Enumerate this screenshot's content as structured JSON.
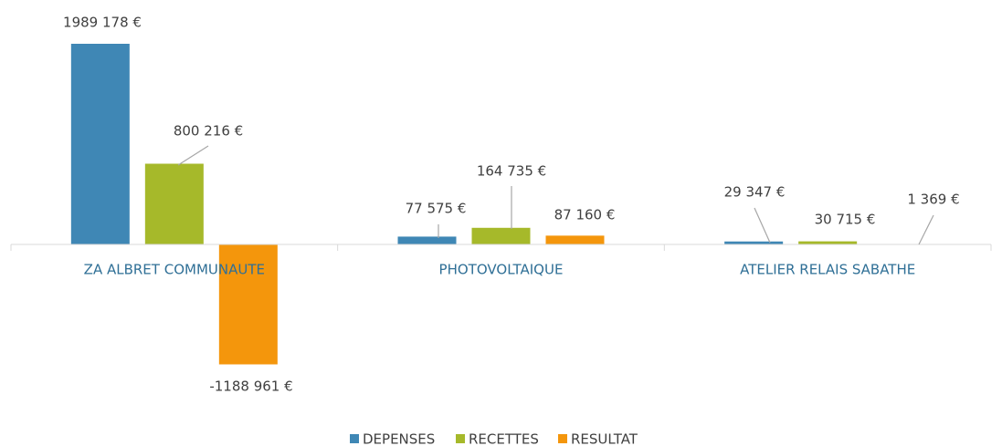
{
  "chart_data": {
    "type": "bar",
    "categories": [
      "ZA ALBRET COMMUNAUTE",
      "PHOTOVOLTAIQUE",
      "ATELIER RELAIS SABATHE"
    ],
    "series": [
      {
        "name": "DEPENSES",
        "color": "#3f87b5",
        "values": [
          1989178,
          77575,
          29347
        ],
        "value_labels": [
          "1989 178 €",
          "77 575 €",
          "29 347 €"
        ]
      },
      {
        "name": "RECETTES",
        "color": "#a6b92a",
        "values": [
          800216,
          164735,
          30715
        ],
        "value_labels": [
          "800 216 €",
          "164 735 €",
          "30 715 €"
        ]
      },
      {
        "name": "RESULTAT",
        "color": "#f4960c",
        "values": [
          -1188961,
          87160,
          1369
        ],
        "value_labels": [
          "-1188 961 €",
          "87 160 €",
          "1 369 €"
        ]
      }
    ],
    "legend": "bottom"
  }
}
